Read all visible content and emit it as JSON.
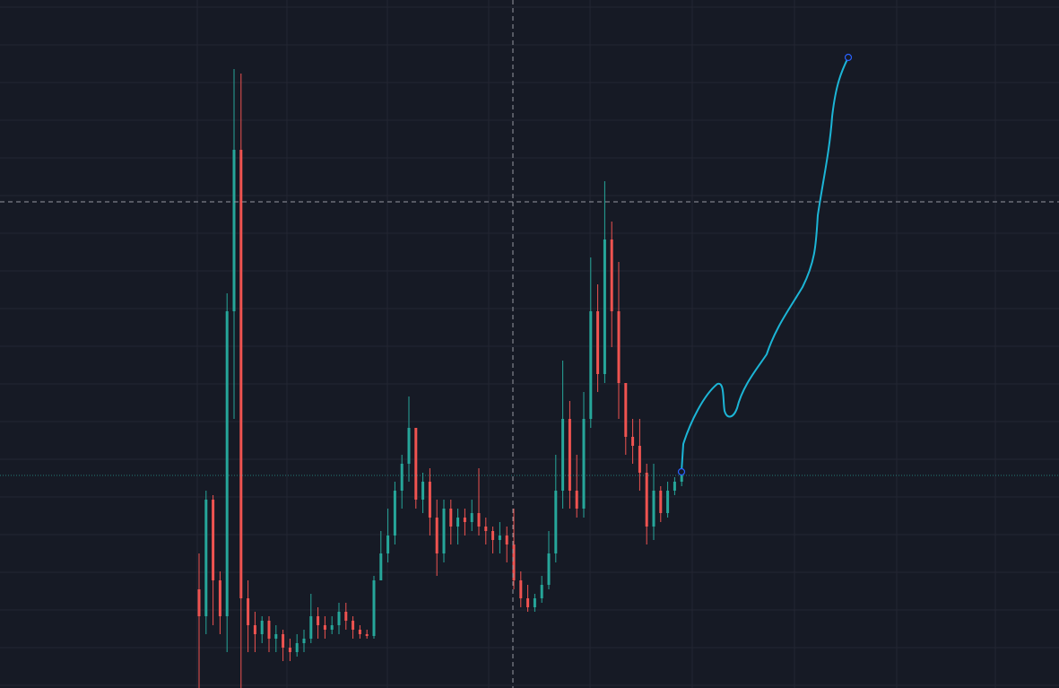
{
  "chart_data": {
    "type": "candlestick",
    "up_color": "#26a69a",
    "down_color": "#ef5350",
    "ylim": [
      0,
      767
    ],
    "open": [
      110,
      80,
      210,
      120,
      80,
      420,
      600,
      100,
      70,
      60,
      75,
      55,
      60,
      45,
      40,
      50,
      55,
      80,
      70,
      65,
      70,
      85,
      75,
      65,
      60,
      58,
      120,
      150,
      170,
      220,
      250,
      290,
      210,
      230,
      190,
      150,
      200,
      180,
      190,
      185,
      195,
      180,
      175,
      165,
      170,
      160,
      120,
      100,
      90,
      100,
      115,
      150,
      220,
      300,
      220,
      200,
      300,
      420,
      350,
      500,
      420,
      340,
      280,
      270,
      240,
      180,
      220,
      195,
      220,
      230
    ],
    "high": [
      150,
      220,
      215,
      130,
      440,
      690,
      685,
      120,
      85,
      80,
      80,
      70,
      65,
      55,
      60,
      65,
      105,
      90,
      80,
      80,
      95,
      95,
      80,
      70,
      65,
      125,
      175,
      200,
      230,
      260,
      325,
      290,
      240,
      245,
      210,
      210,
      210,
      200,
      200,
      210,
      245,
      190,
      180,
      185,
      180,
      200,
      130,
      115,
      105,
      125,
      175,
      260,
      365,
      320,
      260,
      330,
      480,
      450,
      565,
      520,
      475,
      340,
      300,
      300,
      250,
      250,
      225,
      230,
      235,
      240
    ],
    "low": [
      0,
      60,
      70,
      60,
      40,
      300,
      0,
      40,
      40,
      50,
      40,
      40,
      30,
      30,
      35,
      40,
      50,
      55,
      55,
      60,
      60,
      65,
      55,
      55,
      55,
      55,
      120,
      140,
      160,
      200,
      230,
      200,
      195,
      170,
      125,
      140,
      160,
      160,
      170,
      175,
      170,
      160,
      150,
      150,
      140,
      110,
      90,
      85,
      85,
      95,
      110,
      140,
      200,
      200,
      190,
      190,
      290,
      330,
      340,
      380,
      300,
      260,
      250,
      220,
      160,
      165,
      185,
      190,
      215,
      225
    ],
    "close": [
      80,
      210,
      120,
      80,
      420,
      600,
      100,
      70,
      60,
      75,
      55,
      60,
      45,
      40,
      50,
      55,
      80,
      70,
      65,
      70,
      85,
      75,
      65,
      60,
      58,
      120,
      150,
      170,
      220,
      250,
      290,
      210,
      230,
      190,
      150,
      200,
      180,
      190,
      185,
      195,
      180,
      175,
      165,
      170,
      160,
      120,
      100,
      90,
      100,
      115,
      150,
      220,
      300,
      220,
      200,
      300,
      420,
      350,
      500,
      420,
      340,
      280,
      270,
      240,
      180,
      220,
      195,
      220,
      230,
      237
    ]
  }
}
